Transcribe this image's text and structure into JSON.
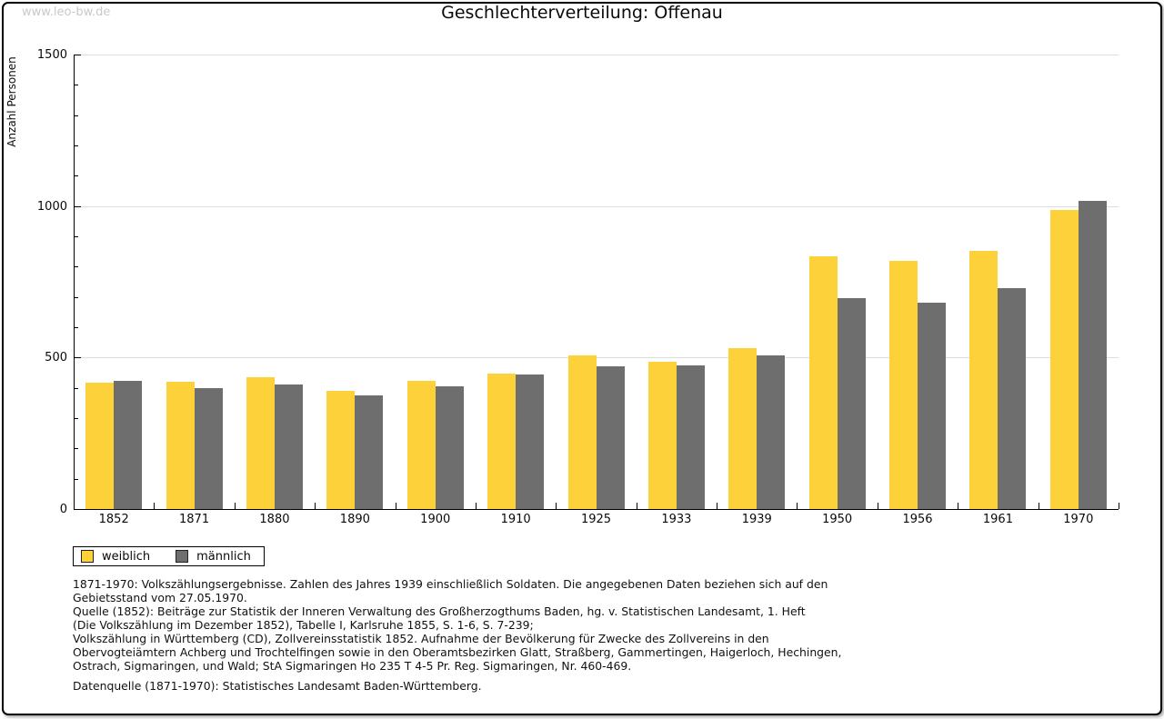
{
  "watermark": "www.leo-bw.de",
  "chart_data": {
    "type": "bar",
    "title": "Geschlechterverteilung: Offenau",
    "xlabel": "",
    "ylabel": "Anzahl Personen",
    "categories": [
      "1852",
      "1871",
      "1880",
      "1890",
      "1900",
      "1910",
      "1925",
      "1933",
      "1939",
      "1950",
      "1956",
      "1961",
      "1970"
    ],
    "series": [
      {
        "name": "weiblich",
        "color": "#FCD13A",
        "values": [
          417,
          421,
          436,
          390,
          423,
          447,
          507,
          485,
          530,
          835,
          820,
          853,
          988
        ]
      },
      {
        "name": "männlich",
        "color": "#6E6E6E",
        "values": [
          422,
          398,
          410,
          374,
          406,
          443,
          470,
          473,
          506,
          697,
          682,
          729,
          1016
        ]
      }
    ],
    "ylim": [
      0,
      1500
    ],
    "yticks_major": [
      0,
      500,
      1000,
      1500
    ],
    "ytick_minor_step": 100,
    "grid": "horizontal gridlines at 500, 1000, 1500",
    "legend_position": "bottom-left"
  },
  "footnotes": {
    "lines": [
      "1871-1970: Volkszählungsergebnisse. Zahlen des Jahres 1939 einschließlich Soldaten. Die angegebenen Daten beziehen sich auf den",
      "Gebietsstand vom 27.05.1970.",
      "Quelle (1852): Beiträge zur Statistik der Inneren Verwaltung des Großherzogthums Baden, hg. v. Statistischen Landesamt, 1. Heft",
      "(Die Volkszählung im Dezember 1852), Tabelle I, Karlsruhe 1855, S. 1-6, S. 7-239;",
      "Volkszählung in Württemberg (CD), Zollvereinsstatistik 1852. Aufnahme der Bevölkerung für Zwecke des Zollvereins in den",
      "Obervogteiämtern Achberg und Trochtelfingen sowie in den Oberamtsbezirken Glatt, Straßberg, Gammertingen, Haigerloch, Hechingen,",
      "Ostrach, Sigmaringen, und Wald; StA Sigmaringen Ho 235 T 4-5 Pr. Reg. Sigmaringen, Nr. 460-469."
    ],
    "datasource": "Datenquelle (1871-1970): Statistisches Landesamt Baden-Württemberg."
  },
  "colors": {
    "weiblich": "#FCD13A",
    "männlich": "#6E6E6E",
    "gridline": "#DDDDDD",
    "axis": "#000000",
    "watermark": "#C9C9C9"
  }
}
